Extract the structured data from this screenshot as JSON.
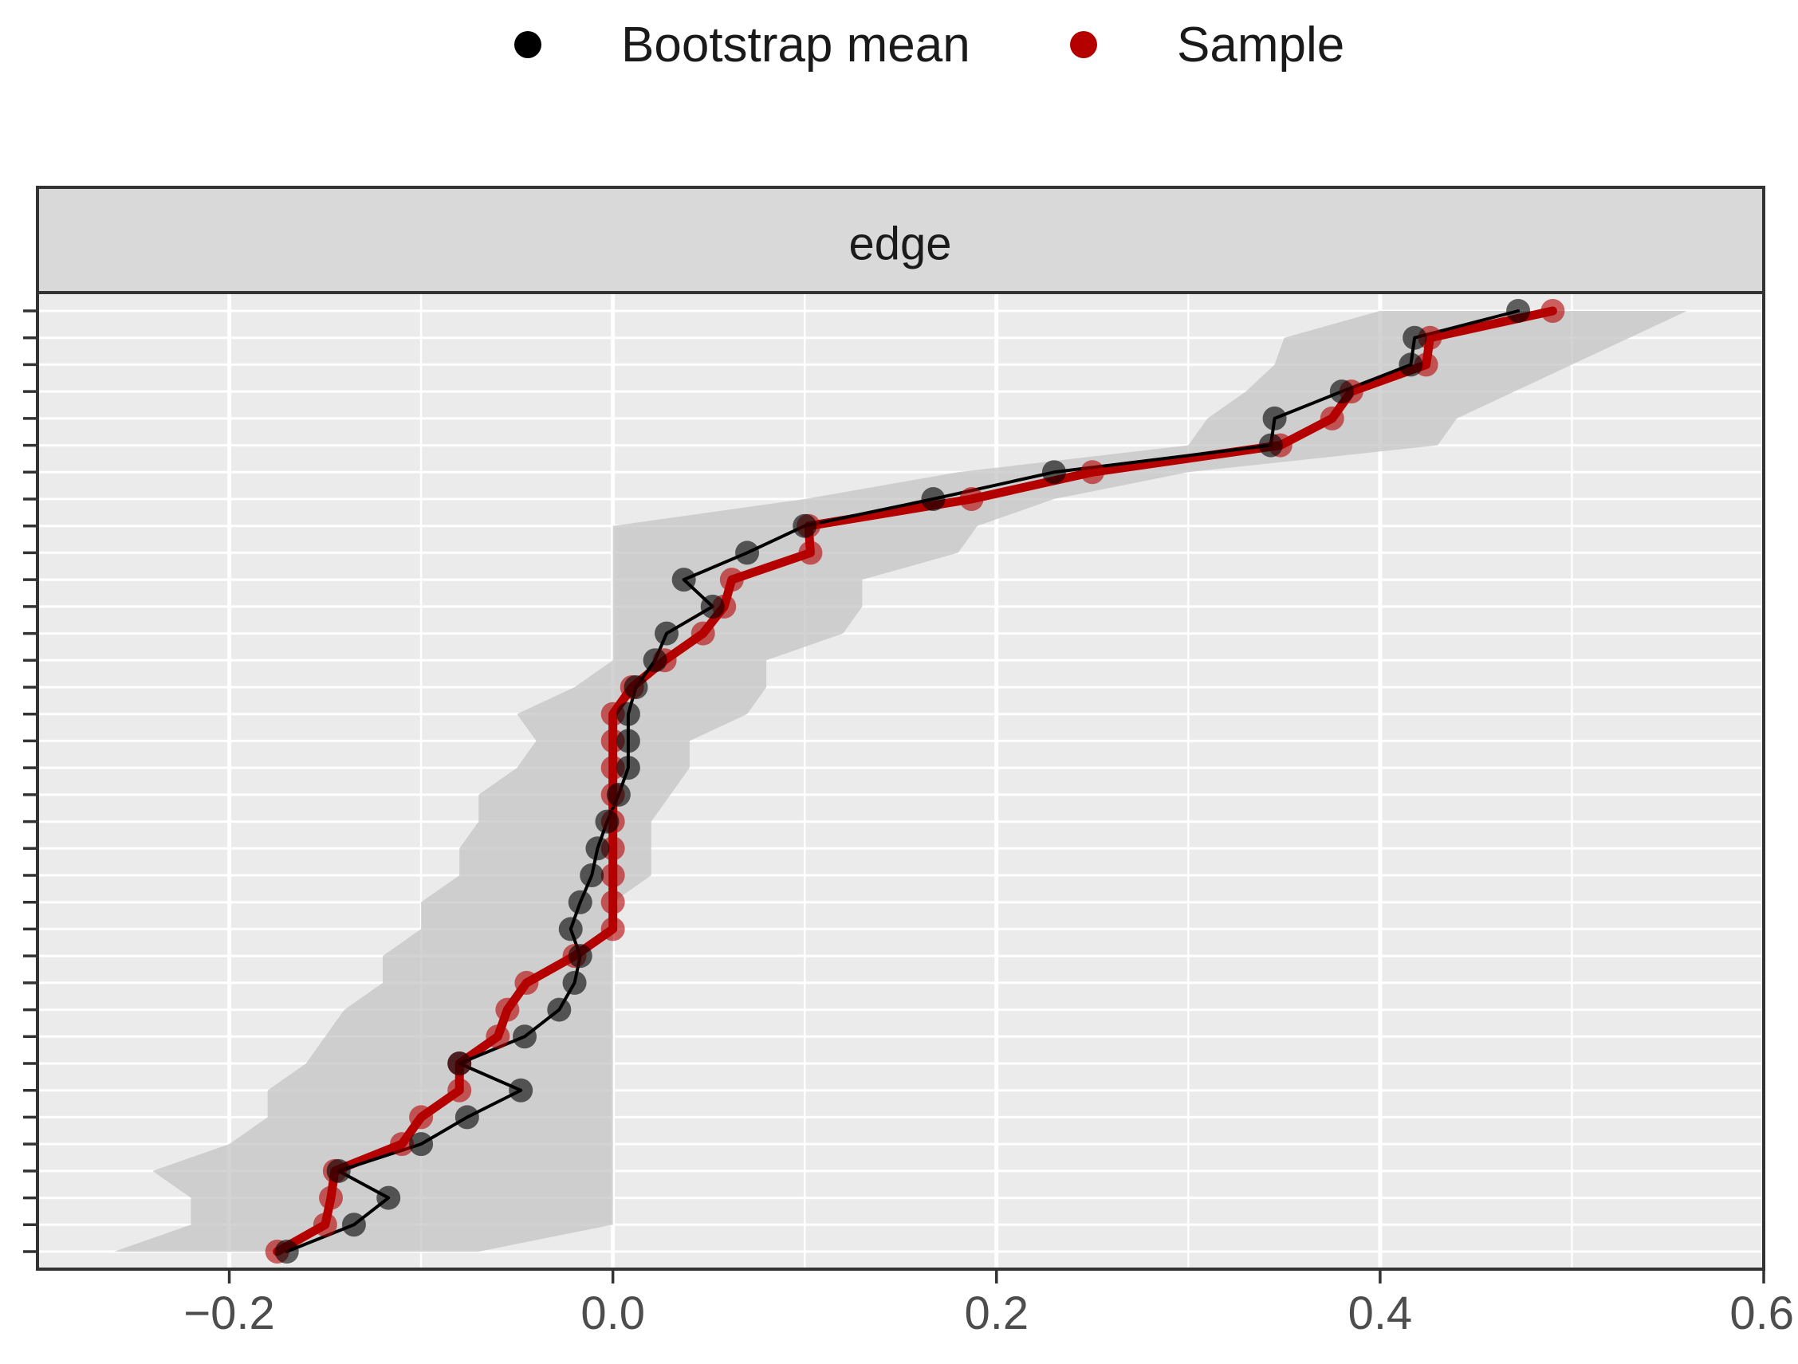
{
  "legend": {
    "items": [
      {
        "label": "Bootstrap mean",
        "color": "#000000"
      },
      {
        "label": "Sample",
        "color": "#b50000"
      }
    ],
    "position": "top"
  },
  "chart_data": {
    "type": "line",
    "facet_label": "edge",
    "xlim": [
      -0.3,
      0.6
    ],
    "x_ticks": [
      -0.2,
      0.0,
      0.2,
      0.4,
      0.6
    ],
    "x_tick_labels": [
      "−0.2",
      "0.0",
      "0.2",
      "0.4",
      "0.6"
    ],
    "grid": true,
    "colors": {
      "bootstrap": "#000000",
      "sample": "#b50000",
      "band": "#c4c4c4",
      "panel": "#ebebeb"
    },
    "series": [
      {
        "name": "Bootstrap mean",
        "values": [
          0.472,
          0.418,
          0.416,
          0.38,
          0.345,
          0.343,
          0.23,
          0.167,
          0.1,
          0.07,
          0.037,
          0.052,
          0.028,
          0.022,
          0.012,
          0.008,
          0.008,
          0.008,
          0.003,
          -0.003,
          -0.008,
          -0.011,
          -0.017,
          -0.022,
          -0.017,
          -0.02,
          -0.028,
          -0.046,
          -0.08,
          -0.048,
          -0.076,
          -0.1,
          -0.143,
          -0.117,
          -0.135,
          -0.17
        ]
      },
      {
        "name": "Sample",
        "values": [
          0.49,
          0.426,
          0.424,
          0.385,
          0.375,
          0.348,
          0.25,
          0.187,
          0.102,
          0.103,
          0.062,
          0.058,
          0.047,
          0.027,
          0.01,
          0.0,
          0.0,
          0.0,
          0.0,
          0.0,
          0.0,
          0.0,
          0.0,
          0.0,
          -0.02,
          -0.045,
          -0.055,
          -0.06,
          -0.08,
          -0.08,
          -0.1,
          -0.11,
          -0.145,
          -0.147,
          -0.15,
          -0.175
        ]
      }
    ],
    "band": {
      "lower": [
        0.4,
        0.35,
        0.345,
        0.33,
        0.31,
        0.3,
        0.18,
        0.1,
        0.0,
        0.0,
        0.0,
        0.0,
        0.0,
        0.0,
        -0.02,
        -0.05,
        -0.04,
        -0.05,
        -0.07,
        -0.07,
        -0.08,
        -0.08,
        -0.1,
        -0.1,
        -0.12,
        -0.12,
        -0.14,
        -0.15,
        -0.16,
        -0.18,
        -0.18,
        -0.2,
        -0.24,
        -0.22,
        -0.22,
        -0.26
      ],
      "upper": [
        0.56,
        0.53,
        0.5,
        0.47,
        0.44,
        0.43,
        0.3,
        0.23,
        0.19,
        0.18,
        0.13,
        0.13,
        0.12,
        0.08,
        0.08,
        0.07,
        0.04,
        0.04,
        0.03,
        0.02,
        0.02,
        0.02,
        0.0,
        0.0,
        0.0,
        0.0,
        0.0,
        0.0,
        0.0,
        0.0,
        0.0,
        0.0,
        0.0,
        0.0,
        0.0,
        -0.07
      ]
    }
  }
}
